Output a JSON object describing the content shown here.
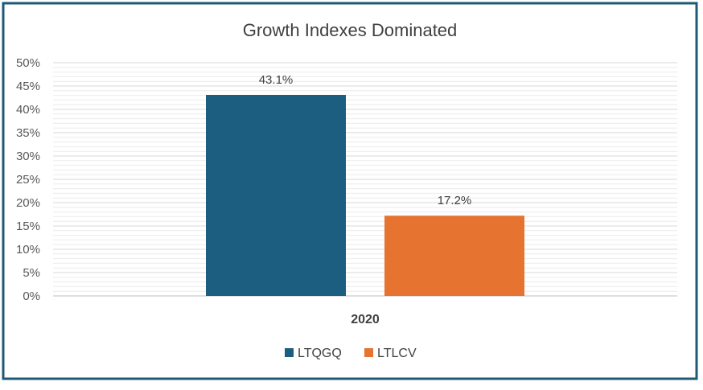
{
  "chart_data": {
    "type": "bar",
    "title": "Growth Indexes Dominated",
    "categories": [
      "2020"
    ],
    "series": [
      {
        "name": "LTQGQ",
        "values": [
          43.1
        ],
        "label": "43.1%",
        "color": "#1b5e80"
      },
      {
        "name": "LTLCV",
        "values": [
          17.2
        ],
        "label": "17.2%",
        "color": "#e67330"
      }
    ],
    "ylim": [
      0,
      50
    ],
    "yticks": [
      0,
      5,
      10,
      15,
      20,
      25,
      30,
      35,
      40,
      45,
      50
    ],
    "ytick_labels": [
      "0%",
      "5%",
      "10%",
      "15%",
      "20%",
      "25%",
      "30%",
      "35%",
      "40%",
      "45%",
      "50%"
    ],
    "grid": true,
    "legend": "bottom",
    "frame_color": "#1e5a74",
    "grid_color": "#d9d9d9"
  }
}
